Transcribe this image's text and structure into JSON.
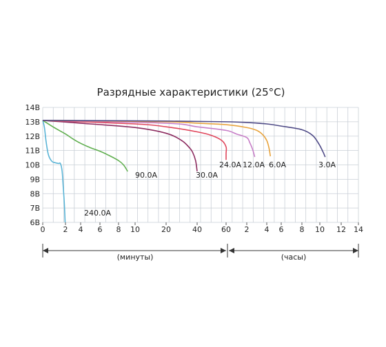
{
  "chart_data": {
    "type": "line",
    "title": "Разрядные характеристики (25°C)",
    "y_unit": "В",
    "ylim": [
      6,
      14
    ],
    "yticks": [
      "14В",
      "13В",
      "12В",
      "11В",
      "10В",
      "9В",
      "8В",
      "7В",
      "6В"
    ],
    "xticks": [
      "0",
      "2",
      "4",
      "6",
      "8",
      "10",
      "20",
      "40",
      "60",
      "2",
      "4",
      "6",
      "8",
      "10",
      "12",
      "14"
    ],
    "grid": true,
    "x_segments": [
      {
        "label": "(минуты)",
        "unit": "min",
        "ticks": [
          0,
          2,
          4,
          6,
          8,
          10,
          20,
          40,
          60
        ]
      },
      {
        "label": "(часы)",
        "unit": "h",
        "ticks": [
          1,
          2,
          4,
          6,
          8,
          10,
          12,
          14
        ]
      }
    ],
    "series": [
      {
        "name": "240.0A",
        "color": "#5ab4d6",
        "points": [
          [
            0,
            13.1
          ],
          [
            0.15,
            12.6
          ],
          [
            0.3,
            11.6
          ],
          [
            0.5,
            10.7
          ],
          [
            0.8,
            10.25
          ],
          [
            1.1,
            10.15
          ],
          [
            1.4,
            10.1
          ],
          [
            1.55,
            10.1
          ],
          [
            1.7,
            9.6
          ],
          [
            1.8,
            8.5
          ],
          [
            1.9,
            7.3
          ],
          [
            1.97,
            6.0
          ]
        ]
      },
      {
        "name": "90.0A",
        "color": "#5fae4e",
        "points": [
          [
            0,
            13.1
          ],
          [
            1,
            12.6
          ],
          [
            2,
            12.15
          ],
          [
            3,
            11.8
          ],
          [
            4,
            11.5
          ],
          [
            5,
            11.2
          ],
          [
            6,
            10.95
          ],
          [
            7,
            10.65
          ],
          [
            8,
            10.3
          ],
          [
            8.6,
            10.0
          ],
          [
            9.1,
            9.55
          ]
        ]
      },
      {
        "name": "30.0A",
        "color": "#8b2a5e",
        "points": [
          [
            0,
            13.1
          ],
          [
            5,
            12.85
          ],
          [
            10,
            12.6
          ],
          [
            20,
            12.2
          ],
          [
            30,
            11.7
          ],
          [
            35,
            11.2
          ],
          [
            37,
            10.9
          ],
          [
            39,
            10.3
          ],
          [
            40,
            9.55
          ]
        ]
      },
      {
        "name": "24.0A",
        "color": "#e0455b",
        "points": [
          [
            0,
            13.1
          ],
          [
            10,
            12.85
          ],
          [
            20,
            12.65
          ],
          [
            40,
            12.3
          ],
          [
            50,
            12.05
          ],
          [
            57,
            11.7
          ],
          [
            62,
            11.25
          ],
          [
            65,
            10.8
          ],
          [
            67,
            10.35
          ]
        ]
      },
      {
        "name": "12.0A",
        "color": "#c77ec7",
        "points": [
          [
            0,
            13.1
          ],
          [
            20,
            12.9
          ],
          [
            40,
            12.65
          ],
          [
            60,
            12.4
          ],
          [
            1.5,
            12.15
          ],
          [
            2.0,
            11.9
          ],
          [
            2.3,
            11.55
          ],
          [
            2.6,
            11.05
          ],
          [
            2.8,
            10.55
          ]
        ]
      },
      {
        "name": "6.0A",
        "color": "#e8a33d",
        "points": [
          [
            0,
            13.1
          ],
          [
            20,
            13.0
          ],
          [
            40,
            12.9
          ],
          [
            60,
            12.8
          ],
          [
            2,
            12.6
          ],
          [
            3,
            12.4
          ],
          [
            3.6,
            12.1
          ],
          [
            4.0,
            11.7
          ],
          [
            4.3,
            11.2
          ],
          [
            4.5,
            10.6
          ]
        ]
      },
      {
        "name": "3.0A",
        "color": "#4e4a86",
        "points": [
          [
            0,
            13.1
          ],
          [
            20,
            13.05
          ],
          [
            60,
            13.0
          ],
          [
            2,
            12.95
          ],
          [
            4,
            12.85
          ],
          [
            6,
            12.7
          ],
          [
            8,
            12.45
          ],
          [
            9.2,
            12.05
          ],
          [
            9.9,
            11.45
          ],
          [
            10.3,
            10.9
          ],
          [
            10.5,
            10.55
          ]
        ]
      }
    ],
    "annotations": [
      "240.0A",
      "90.0A",
      "30.0A",
      "24.0A",
      "12.0A",
      "6.0A",
      "3.0A"
    ]
  }
}
